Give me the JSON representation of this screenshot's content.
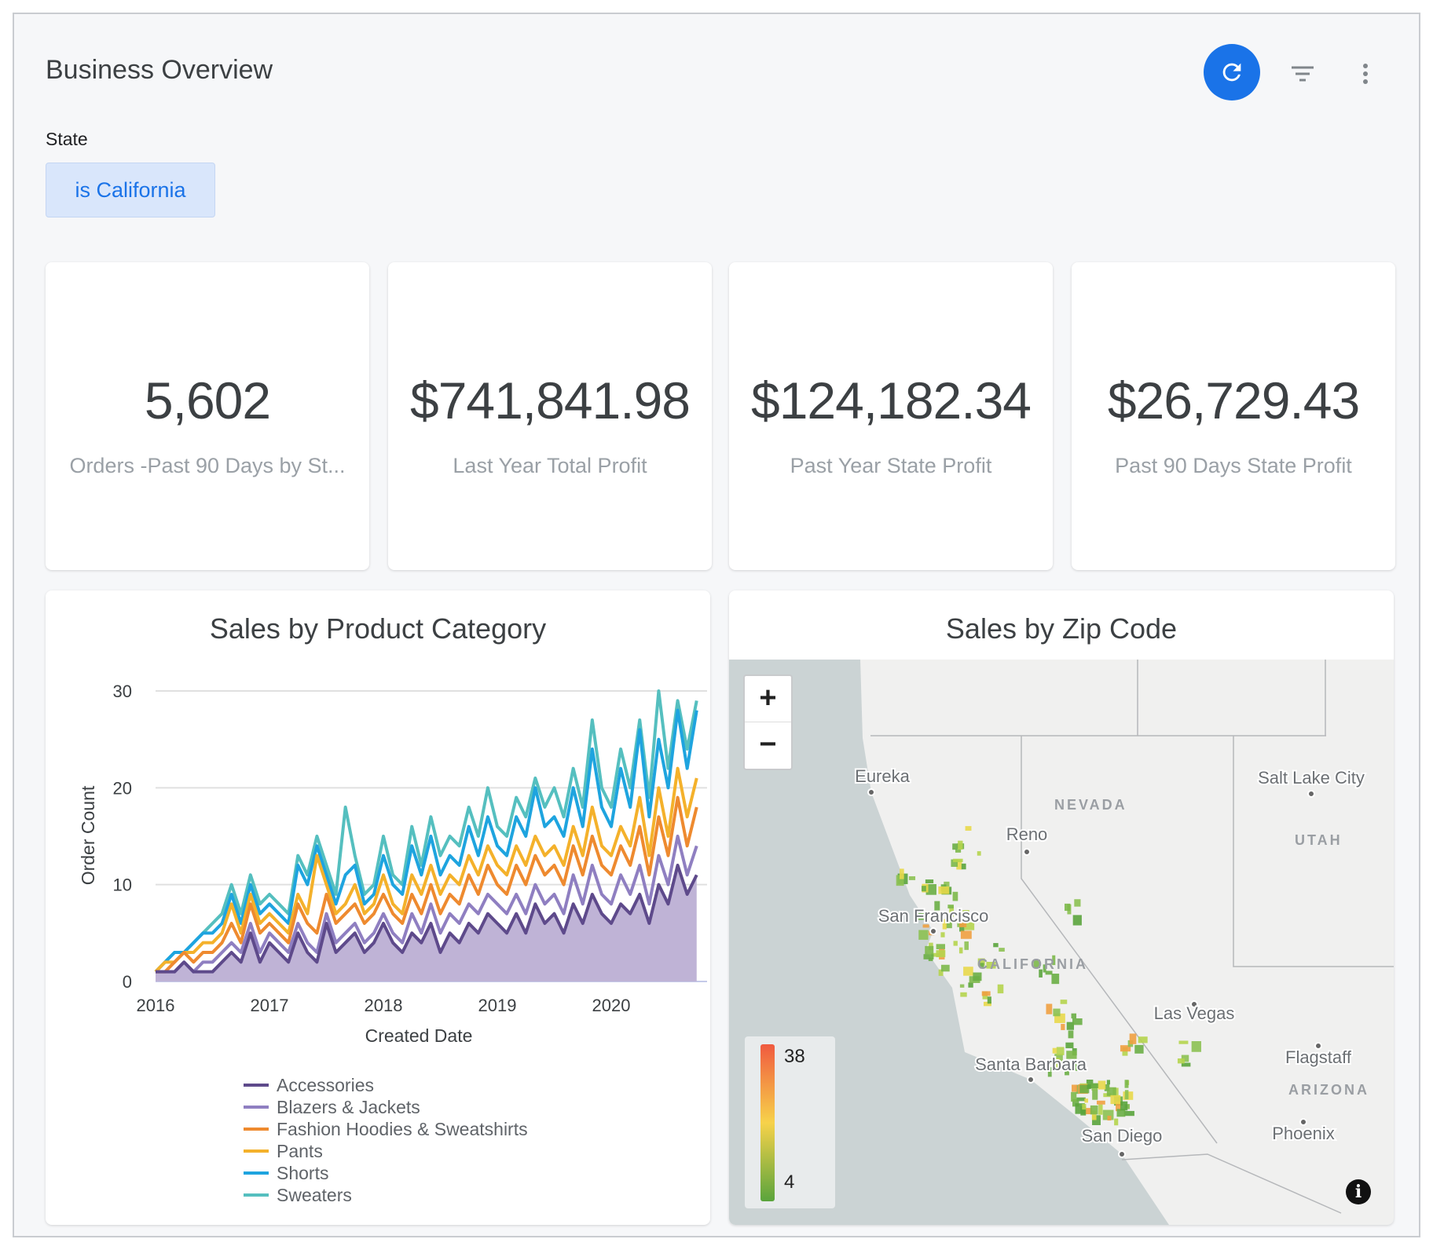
{
  "header": {
    "title": "Business Overview",
    "refresh_icon": "refresh-icon",
    "filter_icon": "filter-icon",
    "more_icon": "more-vert-icon",
    "accent": "#1a73e8"
  },
  "filter": {
    "label": "State",
    "value": "is California"
  },
  "kpis": [
    {
      "value": "5,602",
      "label": "Orders -Past 90 Days by St..."
    },
    {
      "value": "$741,841.98",
      "label": "Last Year Total Profit"
    },
    {
      "value": "$124,182.34",
      "label": "Past Year State Profit"
    },
    {
      "value": "$26,729.43",
      "label": "Past 90 Days State Profit"
    }
  ],
  "chart_data": {
    "type": "line",
    "title": "Sales by Product Category",
    "xlabel": "Created Date",
    "ylabel": "Order Count",
    "ylim": [
      0,
      30
    ],
    "yticks": [
      "0",
      "10",
      "20",
      "30"
    ],
    "xticks": [
      "2016",
      "2017",
      "2018",
      "2019",
      "2020"
    ],
    "grid": true,
    "legend": "bottom",
    "x": [
      "2016-01",
      "2016-02",
      "2016-03",
      "2016-04",
      "2016-05",
      "2016-06",
      "2016-07",
      "2016-08",
      "2016-09",
      "2016-10",
      "2016-11",
      "2016-12",
      "2017-01",
      "2017-02",
      "2017-03",
      "2017-04",
      "2017-05",
      "2017-06",
      "2017-07",
      "2017-08",
      "2017-09",
      "2017-10",
      "2017-11",
      "2017-12",
      "2018-01",
      "2018-02",
      "2018-03",
      "2018-04",
      "2018-05",
      "2018-06",
      "2018-07",
      "2018-08",
      "2018-09",
      "2018-10",
      "2018-11",
      "2018-12",
      "2019-01",
      "2019-02",
      "2019-03",
      "2019-04",
      "2019-05",
      "2019-06",
      "2019-07",
      "2019-08",
      "2019-09",
      "2019-10",
      "2019-11",
      "2019-12",
      "2020-01",
      "2020-02",
      "2020-03",
      "2020-04",
      "2020-05",
      "2020-06",
      "2020-07",
      "2020-08",
      "2020-09",
      "2020-10"
    ],
    "series": [
      {
        "name": "Accessories",
        "color": "#5e4a8b",
        "values": [
          1,
          1,
          1,
          2,
          1,
          1,
          1,
          2,
          3,
          2,
          5,
          2,
          4,
          3,
          2,
          5,
          3,
          2,
          6,
          3,
          4,
          5,
          3,
          4,
          6,
          4,
          3,
          5,
          4,
          6,
          3,
          5,
          4,
          6,
          5,
          7,
          6,
          5,
          7,
          5,
          8,
          6,
          7,
          5,
          8,
          6,
          9,
          7,
          6,
          8,
          7,
          9,
          6,
          10,
          8,
          12,
          9,
          11
        ]
      },
      {
        "name": "Blazers & Jackets",
        "color": "#8f7fc1",
        "values": [
          1,
          1,
          1,
          2,
          1,
          2,
          2,
          3,
          4,
          3,
          6,
          3,
          5,
          4,
          3,
          6,
          4,
          3,
          7,
          4,
          5,
          6,
          4,
          5,
          7,
          5,
          4,
          7,
          5,
          8,
          5,
          7,
          6,
          8,
          7,
          9,
          8,
          7,
          9,
          7,
          10,
          8,
          9,
          7,
          11,
          8,
          12,
          9,
          8,
          11,
          9,
          12,
          8,
          13,
          10,
          15,
          11,
          14
        ]
      },
      {
        "name": "Fashion Hoodies & Sweatshirts",
        "color": "#ee8a2f",
        "values": [
          1,
          1,
          2,
          3,
          2,
          3,
          3,
          4,
          6,
          4,
          8,
          5,
          6,
          5,
          4,
          8,
          6,
          5,
          9,
          6,
          7,
          8,
          6,
          7,
          9,
          7,
          6,
          9,
          7,
          10,
          7,
          9,
          8,
          11,
          9,
          12,
          10,
          9,
          12,
          10,
          13,
          11,
          12,
          10,
          14,
          11,
          15,
          12,
          11,
          14,
          12,
          16,
          11,
          17,
          13,
          19,
          14,
          18
        ]
      },
      {
        "name": "Pants",
        "color": "#f4b12b",
        "values": [
          1,
          2,
          2,
          3,
          3,
          4,
          4,
          5,
          8,
          5,
          9,
          6,
          7,
          6,
          5,
          9,
          7,
          13,
          10,
          7,
          8,
          10,
          7,
          8,
          11,
          8,
          7,
          11,
          9,
          12,
          9,
          11,
          10,
          13,
          11,
          14,
          12,
          11,
          14,
          12,
          15,
          13,
          14,
          12,
          16,
          13,
          18,
          14,
          13,
          16,
          14,
          19,
          13,
          20,
          15,
          22,
          17,
          21
        ]
      },
      {
        "name": "Shorts",
        "color": "#1ea4df",
        "values": [
          1,
          2,
          3,
          3,
          4,
          5,
          5,
          6,
          9,
          6,
          10,
          7,
          8,
          7,
          6,
          12,
          10,
          14,
          11,
          8,
          11,
          12,
          8,
          9,
          13,
          10,
          9,
          14,
          11,
          15,
          11,
          13,
          12,
          16,
          13,
          17,
          14,
          13,
          17,
          15,
          20,
          16,
          17,
          15,
          20,
          16,
          24,
          18,
          16,
          22,
          18,
          26,
          17,
          25,
          20,
          28,
          22,
          28
        ]
      },
      {
        "name": "Sweaters",
        "color": "#55bfbf",
        "values": [
          1,
          2,
          3,
          3,
          4,
          5,
          6,
          7,
          10,
          7,
          11,
          8,
          9,
          8,
          7,
          13,
          11,
          15,
          12,
          9,
          18,
          13,
          9,
          10,
          15,
          11,
          10,
          16,
          12,
          17,
          13,
          15,
          14,
          18,
          15,
          20,
          16,
          15,
          19,
          17,
          21,
          18,
          20,
          17,
          22,
          18,
          27,
          20,
          18,
          24,
          20,
          27,
          19,
          30,
          22,
          29,
          24,
          29
        ]
      }
    ]
  },
  "map": {
    "title": "Sales by Zip Code",
    "zoom_in": "+",
    "zoom_out": "−",
    "legend": {
      "max": "38",
      "min": "4",
      "colors": [
        "#f05a3f",
        "#f7d24a",
        "#5aa43c"
      ]
    },
    "cities": [
      "Eureka",
      "Reno",
      "San Francisco",
      "Las Vegas",
      "Santa Barbara",
      "San Diego",
      "Salt Lake City",
      "Flagstaff",
      "Phoenix"
    ],
    "states": [
      "NEVADA",
      "UTAH",
      "CALIFORNIA",
      "ARIZONA"
    ],
    "info_icon": "info-icon"
  }
}
